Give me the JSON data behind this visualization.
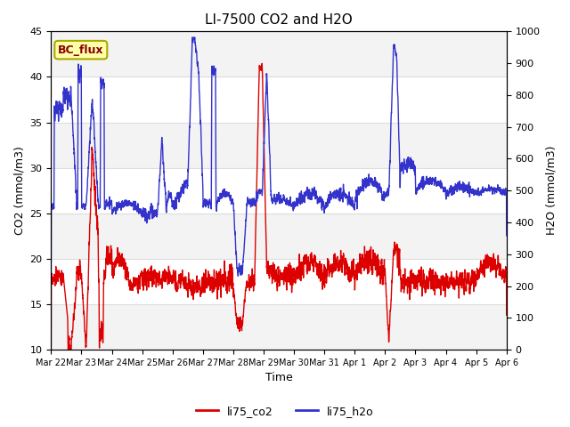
{
  "title": "LI-7500 CO2 and H2O",
  "xlabel": "Time",
  "ylabel_left": "CO2 (mmol/m3)",
  "ylabel_right": "H2O (mmol/m3)",
  "ylim_left": [
    10,
    45
  ],
  "ylim_right": [
    0,
    1000
  ],
  "yticks_left": [
    10,
    15,
    20,
    25,
    30,
    35,
    40,
    45
  ],
  "yticks_right": [
    0,
    100,
    200,
    300,
    400,
    500,
    600,
    700,
    800,
    900,
    1000
  ],
  "x_tick_labels": [
    "Mar 22",
    "Mar 23",
    "Mar 24",
    "Mar 25",
    "Mar 26",
    "Mar 27",
    "Mar 28",
    "Mar 29",
    "Mar 30",
    "Mar 31",
    "Apr 1",
    "Apr 2",
    "Apr 3",
    "Apr 4",
    "Apr 5",
    "Apr 6"
  ],
  "color_co2": "#dd0000",
  "color_h2o": "#3333cc",
  "label_co2": "li75_co2",
  "label_h2o": "li75_h2o",
  "annotation_text": "BC_flux",
  "annotation_facecolor": "#ffffaa",
  "annotation_edgecolor": "#aaaa00",
  "annotation_textcolor": "#880000",
  "background_color": "#ffffff",
  "plot_bg_color": "#ffffff",
  "grid_color": "#dddddd",
  "n_days": 15,
  "points_per_day": 288,
  "seed": 42,
  "linewidth_co2": 1.0,
  "linewidth_h2o": 1.0
}
